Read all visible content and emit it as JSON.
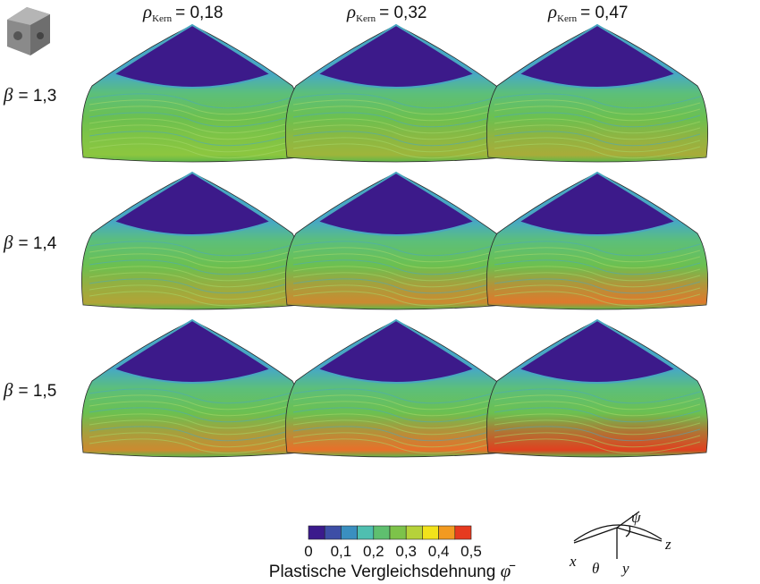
{
  "columns": [
    {
      "symbol": "ρ",
      "subscript": "Kern",
      "value": "= 0,18"
    },
    {
      "symbol": "ρ",
      "subscript": "Kern",
      "value": "= 0,32"
    },
    {
      "symbol": "ρ",
      "subscript": "Kern",
      "value": "= 0,47"
    }
  ],
  "rows": [
    {
      "symbol": "β",
      "value": "= 1,3"
    },
    {
      "symbol": "β",
      "value": "= 1,4"
    },
    {
      "symbol": "β",
      "value": "= 1,5"
    }
  ],
  "colorbar": {
    "tick_labels": [
      "0",
      "0,1",
      "0,2",
      "0,3",
      "0,4",
      "0,5"
    ],
    "label": "Plastische Vergleichsdehnung",
    "symbol": "φ̄"
  },
  "triad": {
    "x": "x",
    "theta": "θ",
    "y": "y",
    "z": "z",
    "psi": "ψ"
  }
}
